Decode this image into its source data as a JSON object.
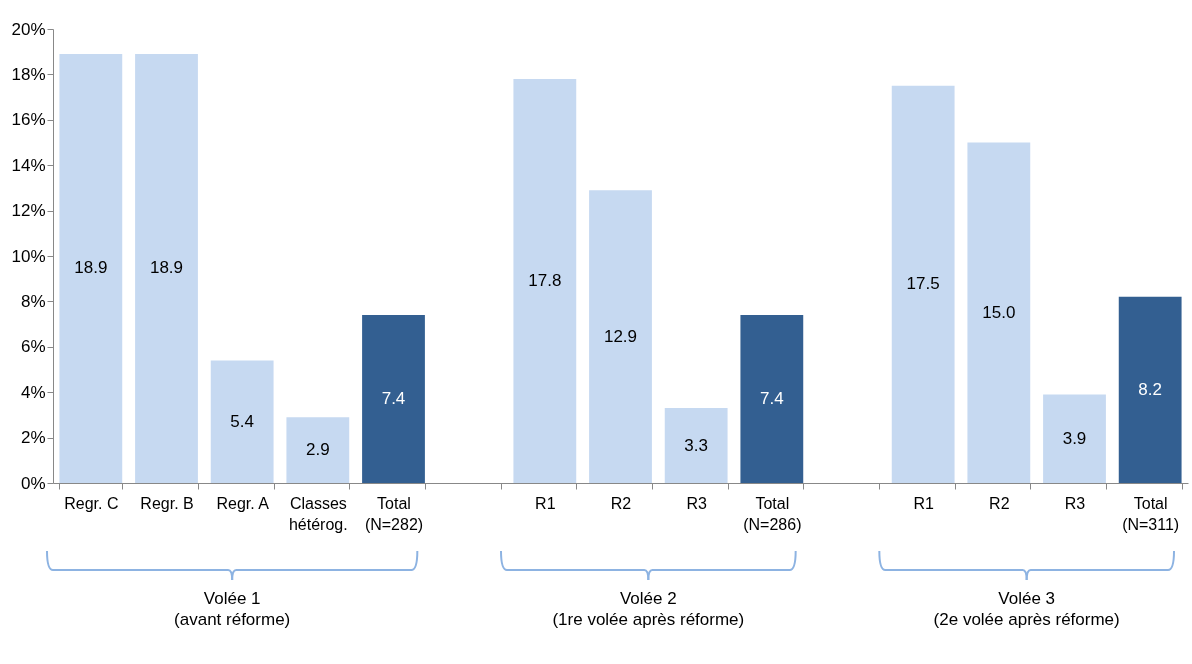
{
  "chart_data": {
    "type": "bar",
    "categories": [
      "Regr. C",
      "Regr. B",
      "Regr. A",
      "Classes hétérog.",
      "Total (N=282)",
      null,
      "R1",
      "R2",
      "R3",
      "Total (N=286)",
      null,
      "R1",
      "R2",
      "R3",
      "Total (N=311)"
    ],
    "values": [
      18.9,
      18.9,
      5.4,
      2.9,
      7.4,
      null,
      17.8,
      12.9,
      3.3,
      7.4,
      null,
      17.5,
      15.0,
      3.9,
      8.2
    ],
    "colors": [
      "#c6d9f1",
      "#c6d9f1",
      "#c6d9f1",
      "#c6d9f1",
      "#335f91",
      null,
      "#c6d9f1",
      "#c6d9f1",
      "#c6d9f1",
      "#335f91",
      null,
      "#c6d9f1",
      "#c6d9f1",
      "#c6d9f1",
      "#335f91"
    ],
    "ylim": [
      0,
      20
    ],
    "yticks": [
      {
        "value": 0,
        "label": "0%"
      },
      {
        "value": 2,
        "label": "2%"
      },
      {
        "value": 4,
        "label": "4%"
      },
      {
        "value": 6,
        "label": "6%"
      },
      {
        "value": 8,
        "label": "8%"
      },
      {
        "value": 10,
        "label": "10%"
      },
      {
        "value": 12,
        "label": "12%"
      },
      {
        "value": 14,
        "label": "14%"
      },
      {
        "value": 16,
        "label": "16%"
      },
      {
        "value": 18,
        "label": "18%"
      },
      {
        "value": 20,
        "label": "20%"
      }
    ],
    "grid": false,
    "value_labels": [
      "18.9",
      "18.9",
      "5.4",
      "2.9",
      "7.4",
      null,
      "17.8",
      "12.9",
      "3.3",
      "7.4",
      null,
      "17.5",
      "15.0",
      "3.9",
      "8.2"
    ],
    "annotations": [
      "Volée 1 (avant réforme)",
      "Volée 2 (1re volée après réforme)",
      "Volée  3 (2e volée après réforme)"
    ]
  }
}
